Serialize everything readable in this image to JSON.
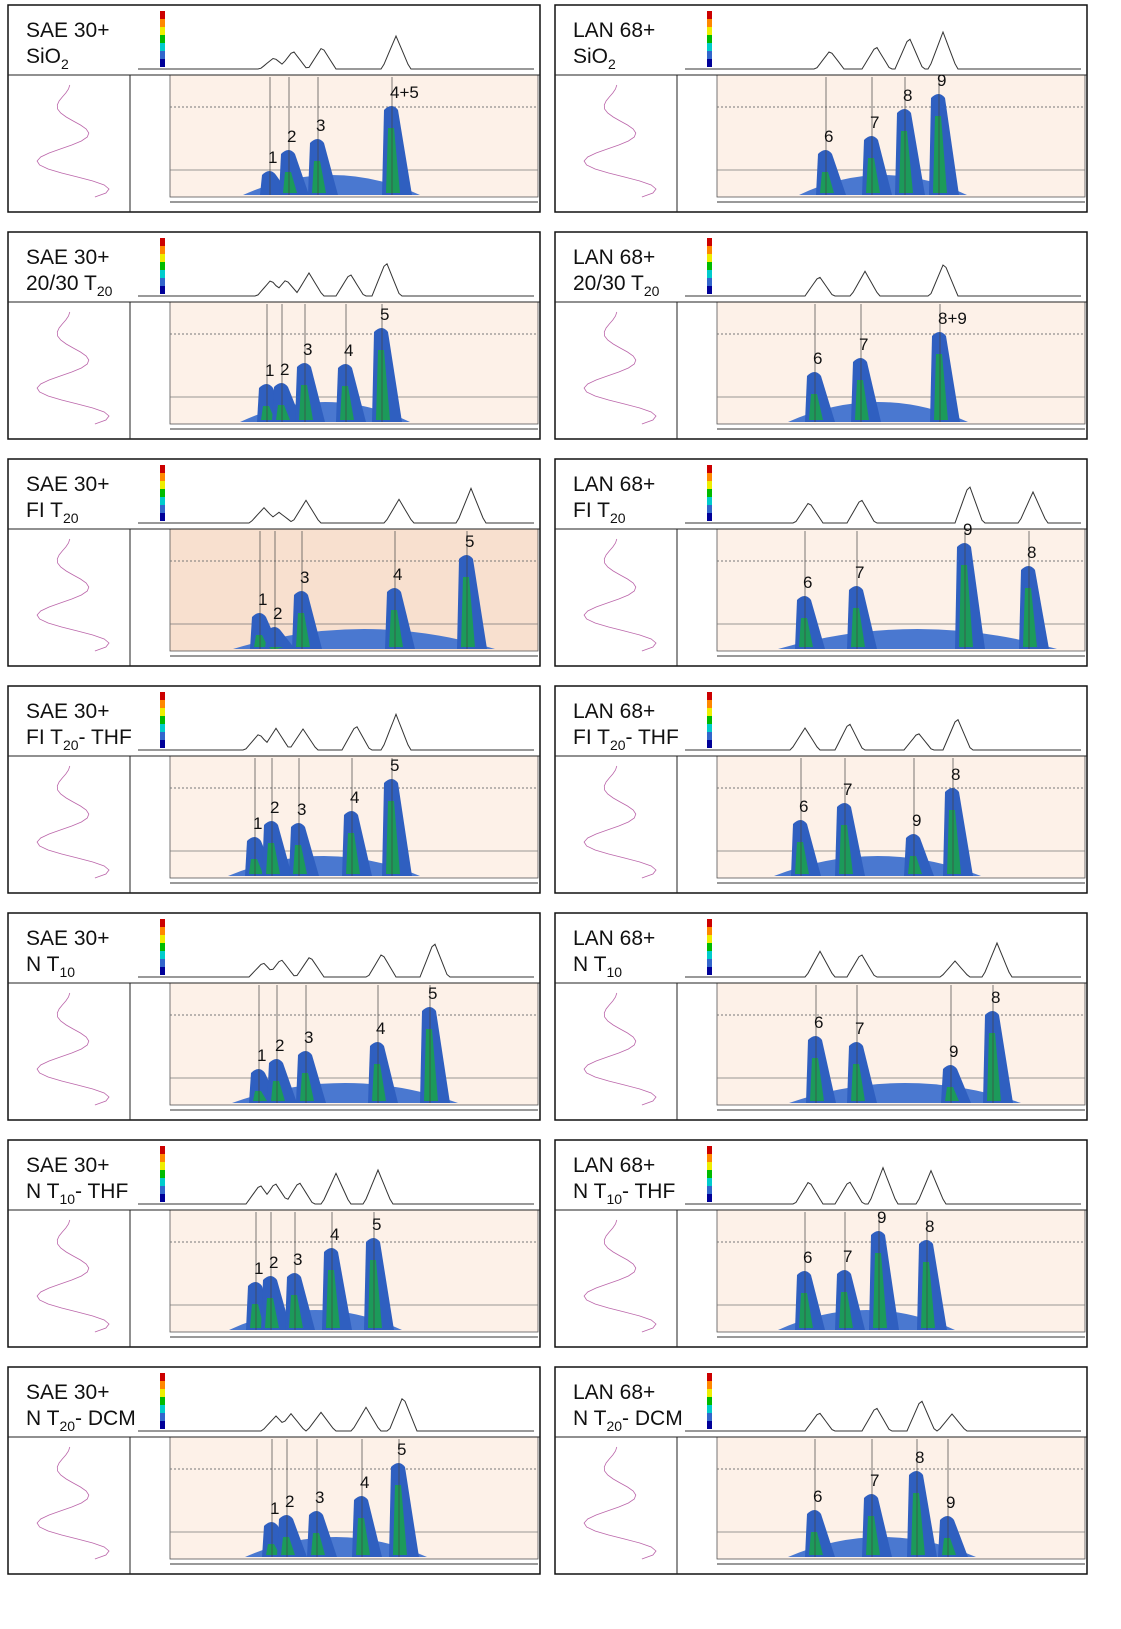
{
  "panels": [
    {
      "label": [
        "SAE 30+",
        {
          "text": "SiO",
          "sub": "2"
        }
      ],
      "peaks": [
        "1",
        "2",
        "3",
        "4+5"
      ]
    },
    {
      "label": [
        "LAN 68+",
        {
          "text": "SiO",
          "sub": "2"
        }
      ],
      "peaks": [
        "6",
        "7",
        "8",
        "9"
      ]
    },
    {
      "label": [
        "SAE 30+",
        {
          "text": "20/30 T",
          "sub": "20"
        }
      ],
      "peaks": [
        "1",
        "2",
        "3",
        "4",
        "5"
      ]
    },
    {
      "label": [
        "LAN 68+",
        {
          "text": "20/30 T",
          "sub": "20"
        }
      ],
      "peaks": [
        "6",
        "7",
        "8+9"
      ]
    },
    {
      "label": [
        "SAE 30+",
        {
          "text": "FI T",
          "sub": "20"
        }
      ],
      "peaks": [
        "1",
        "2",
        "3",
        "4",
        "5"
      ]
    },
    {
      "label": [
        "LAN 68+",
        {
          "text": "FI T",
          "sub": "20"
        }
      ],
      "peaks": [
        "6",
        "7",
        "9",
        "8"
      ]
    },
    {
      "label": [
        "SAE 30+",
        {
          "text": "FI T",
          "sub": "20",
          "tail": "- THF"
        }
      ],
      "peaks": [
        "1",
        "2",
        "3",
        "4",
        "5"
      ]
    },
    {
      "label": [
        "LAN 68+",
        {
          "text": "FI T",
          "sub": "20",
          "tail": "- THF"
        }
      ],
      "peaks": [
        "6",
        "7",
        "9",
        "8"
      ]
    },
    {
      "label": [
        "SAE 30+",
        {
          "text": "N T",
          "sub": "10"
        }
      ],
      "peaks": [
        "1",
        "2",
        "3",
        "4",
        "5"
      ]
    },
    {
      "label": [
        "LAN 68+",
        {
          "text": "N T",
          "sub": "10"
        }
      ],
      "peaks": [
        "6",
        "7",
        "9",
        "8"
      ]
    },
    {
      "label": [
        "SAE 30+",
        {
          "text": "N T",
          "sub": "10",
          "tail": "- THF"
        }
      ],
      "peaks": [
        "1",
        "2",
        "3",
        "4",
        "5"
      ]
    },
    {
      "label": [
        "LAN 68+",
        {
          "text": "N T",
          "sub": "10",
          "tail": "- THF"
        }
      ],
      "peaks": [
        "6",
        "7",
        "9",
        "8"
      ]
    },
    {
      "label": [
        "SAE 30+",
        {
          "text": "N T",
          "sub": "20",
          "tail": "- DCM"
        }
      ],
      "peaks": [
        "1",
        "2",
        "3",
        "4",
        "5"
      ]
    },
    {
      "label": [
        "LAN 68+",
        {
          "text": "N T",
          "sub": "20",
          "tail": "- DCM"
        }
      ],
      "peaks": [
        "6",
        "7",
        "8",
        "9"
      ]
    }
  ]
}
